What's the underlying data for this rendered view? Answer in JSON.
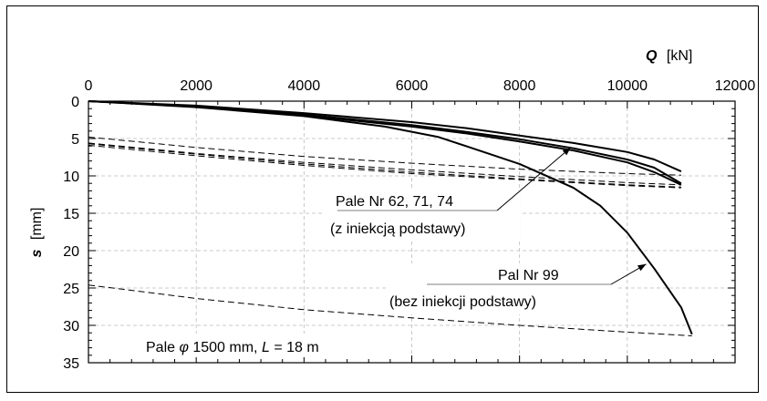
{
  "chart_data": {
    "type": "line",
    "x_axis": {
      "label": "Q",
      "unit": "[kN]",
      "range": [
        0,
        12000
      ],
      "position": "top",
      "ticks": [
        "0",
        "2000",
        "4000",
        "6000",
        "8000",
        "10000",
        "12000"
      ]
    },
    "y_axis": {
      "label": "s",
      "unit": "[mm]",
      "range": [
        0,
        35
      ],
      "inverted": true,
      "ticks": [
        "0",
        "5",
        "10",
        "15",
        "20",
        "25",
        "30",
        "35"
      ]
    },
    "grid": true,
    "series": [
      {
        "style": "solid",
        "x": [
          0,
          2000,
          4000,
          6000,
          7000,
          8000,
          9000,
          10000,
          10500,
          11000
        ],
        "y": [
          0,
          0.6,
          1.6,
          2.8,
          3.6,
          4.6,
          5.6,
          6.8,
          7.8,
          9.4
        ]
      },
      {
        "style": "solid",
        "x": [
          0,
          2000,
          4000,
          6000,
          7000,
          8000,
          9000,
          10000,
          10500,
          11000
        ],
        "y": [
          0,
          0.7,
          1.8,
          3.2,
          4.1,
          5.1,
          6.3,
          7.8,
          8.9,
          11.0
        ]
      },
      {
        "style": "solid",
        "x": [
          0,
          2000,
          4000,
          6000,
          7000,
          8000,
          9000,
          10000,
          10500,
          11000
        ],
        "y": [
          0,
          0.7,
          1.9,
          3.4,
          4.3,
          5.4,
          6.6,
          8.2,
          9.5,
          11.2
        ]
      },
      {
        "style": "solid",
        "x": [
          0,
          2000,
          4000,
          5500,
          6500,
          7000,
          8000,
          9000,
          9500,
          10000,
          10500,
          11000,
          11200
        ],
        "y": [
          0,
          0.8,
          2.0,
          3.4,
          4.8,
          6.0,
          8.4,
          11.6,
          14.0,
          17.6,
          22.4,
          27.6,
          31.2
        ]
      },
      {
        "style": "dashed",
        "x": [
          0,
          2000,
          4000,
          6000,
          8000,
          10000,
          11000
        ],
        "y": [
          4.8,
          6.2,
          7.4,
          8.3,
          9.1,
          9.7,
          9.9
        ]
      },
      {
        "style": "dashed",
        "x": [
          0,
          2000,
          4000,
          6000,
          8000,
          10000,
          11000
        ],
        "y": [
          5.6,
          7.0,
          8.2,
          9.2,
          10.1,
          10.9,
          11.2
        ]
      },
      {
        "style": "dashed",
        "x": [
          0,
          2000,
          4000,
          6000,
          8000,
          10000,
          11000
        ],
        "y": [
          5.9,
          7.3,
          8.6,
          9.7,
          10.5,
          11.3,
          11.6
        ]
      },
      {
        "style": "dashed",
        "x": [
          0,
          2000,
          4000,
          6000,
          8000,
          10000,
          11000
        ],
        "y": [
          5.7,
          7.1,
          8.4,
          9.5,
          10.4,
          11.2,
          11.5
        ]
      },
      {
        "style": "dashed",
        "x": [
          0,
          2000,
          4000,
          6000,
          8000,
          10000,
          11200
        ],
        "y": [
          24.6,
          26.4,
          27.9,
          29.0,
          30.0,
          30.9,
          31.4
        ]
      }
    ],
    "annotations": [
      {
        "text1": "Pale Nr 62, 71, 74",
        "text2": "(z iniekcją podstawy)",
        "arrow_to": [
          8950,
          6.2
        ]
      },
      {
        "text1": "Pal Nr 99",
        "text2": "(bez iniekcji podstawy)",
        "arrow_to": [
          10350,
          21.8
        ]
      }
    ],
    "footnote": {
      "prefix": "Pale ",
      "phi": "φ",
      "middle": "1500 mm, ",
      "L": "L",
      "suffix": " = 18 m"
    }
  }
}
